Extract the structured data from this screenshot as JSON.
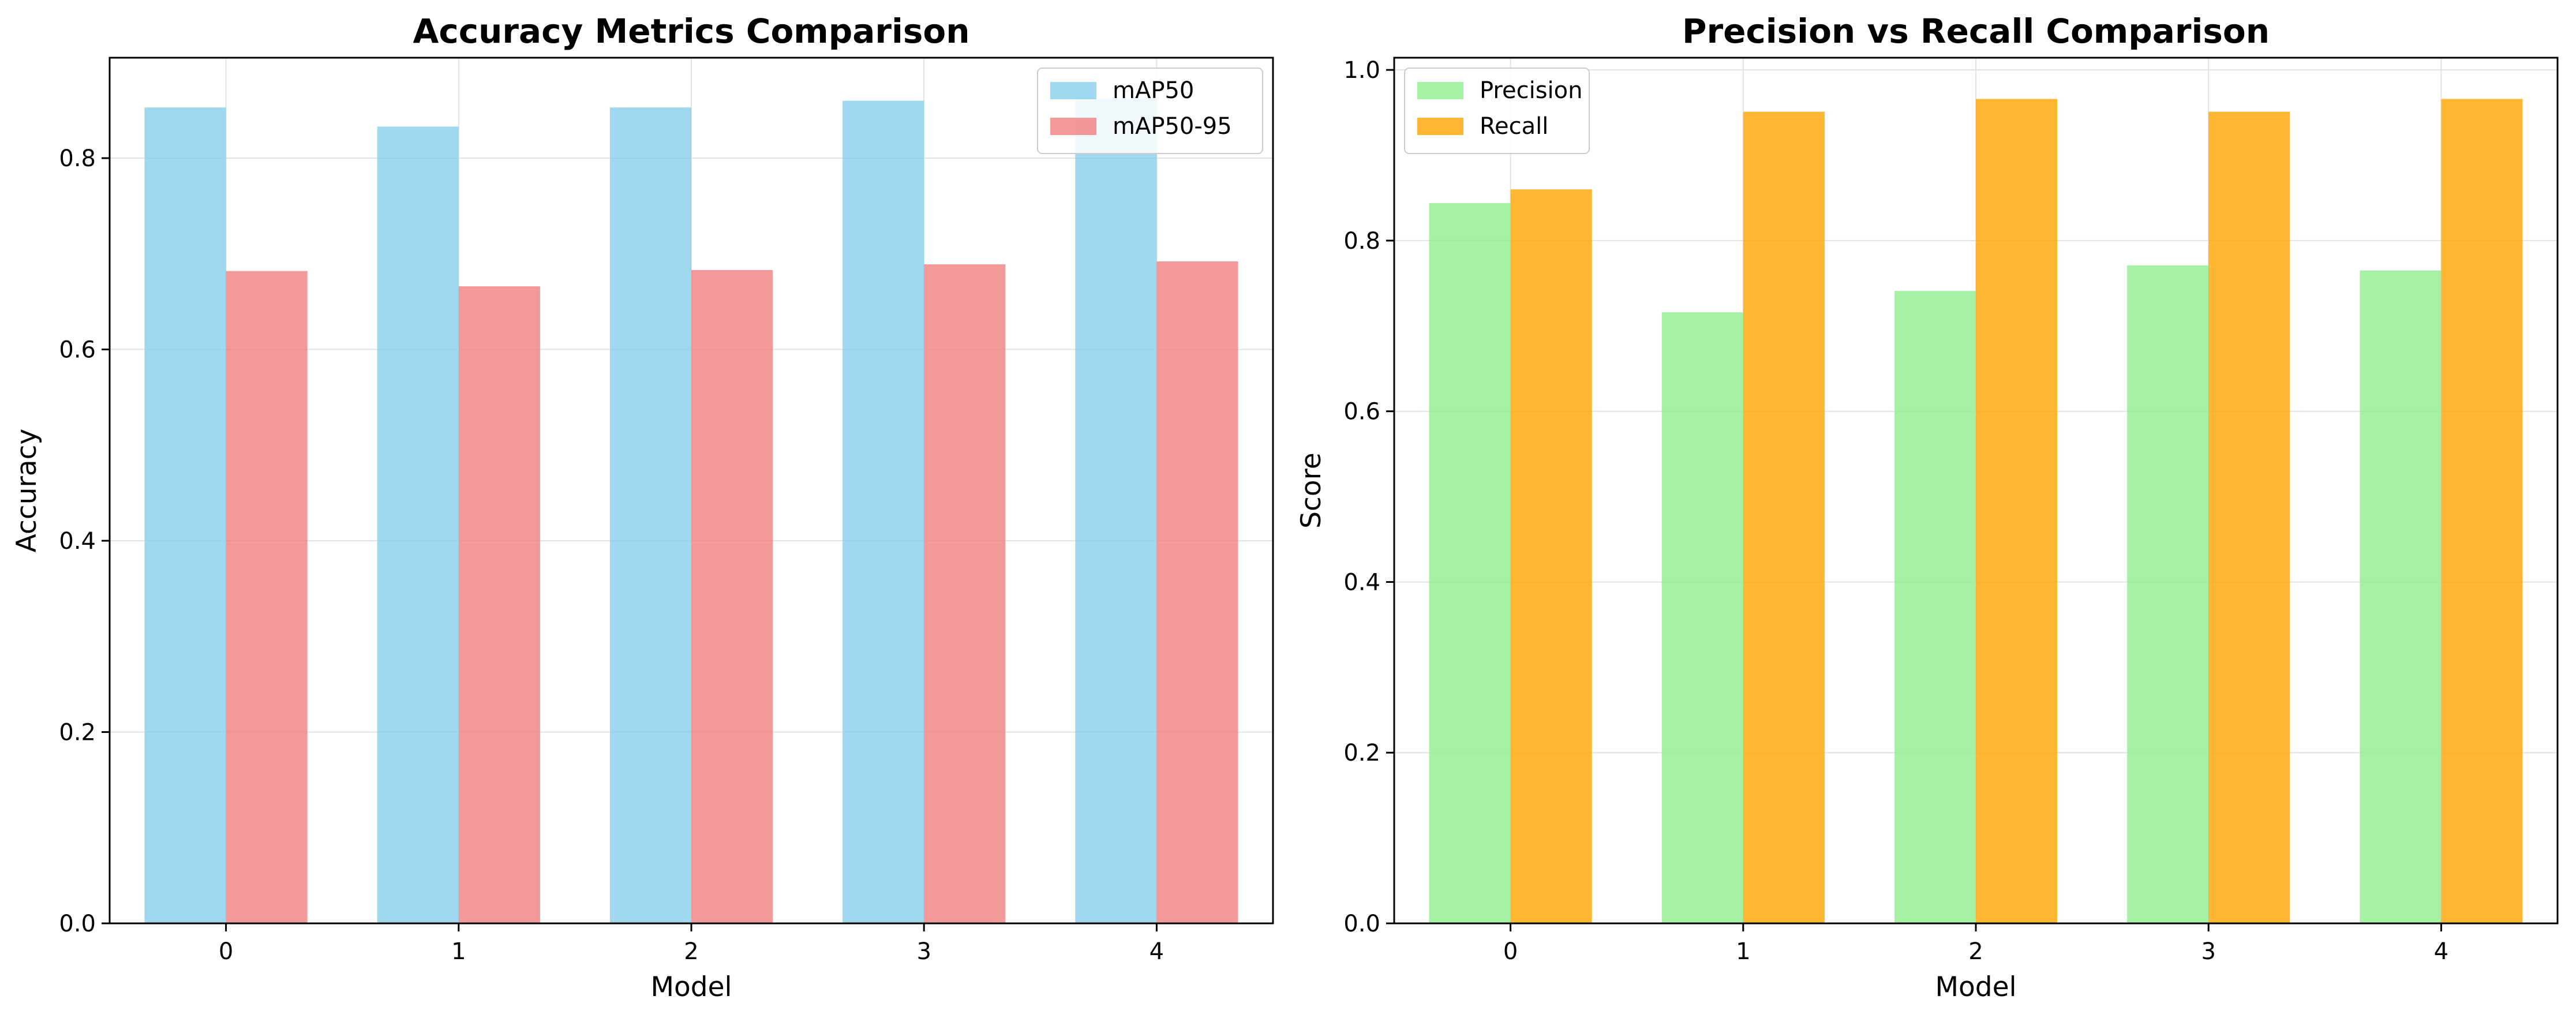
{
  "chart_data": [
    {
      "type": "bar",
      "title": "Accuracy Metrics Comparison",
      "xlabel": "Model",
      "ylabel": "Accuracy",
      "categories": [
        "0",
        "1",
        "2",
        "3",
        "4"
      ],
      "series": [
        {
          "name": "mAP50",
          "values": [
            0.853,
            0.833,
            0.853,
            0.86,
            0.862
          ],
          "color": "#87ceeb"
        },
        {
          "name": "mAP50-95",
          "values": [
            0.682,
            0.666,
            0.683,
            0.689,
            0.692
          ],
          "color": "#f08080"
        }
      ],
      "ylim": [
        0,
        0.905
      ],
      "yticks": [
        "0.0",
        "0.2",
        "0.4",
        "0.6",
        "0.8"
      ],
      "ytick_values": [
        0.0,
        0.2,
        0.4,
        0.6,
        0.8
      ],
      "grid": true,
      "legend": "top-right"
    },
    {
      "type": "bar",
      "title": "Precision vs Recall Comparison",
      "xlabel": "Model",
      "ylabel": "Score",
      "categories": [
        "0",
        "1",
        "2",
        "3",
        "4"
      ],
      "series": [
        {
          "name": "Precision",
          "values": [
            0.844,
            0.716,
            0.741,
            0.771,
            0.765
          ],
          "color": "#90ee90"
        },
        {
          "name": "Recall",
          "values": [
            0.86,
            0.951,
            0.966,
            0.951,
            0.966
          ],
          "color": "#ffa500"
        }
      ],
      "ylim": [
        0,
        1.0143
      ],
      "yticks": [
        "0.0",
        "0.2",
        "0.4",
        "0.6",
        "0.8",
        "1.0"
      ],
      "ytick_values": [
        0.0,
        0.2,
        0.4,
        0.6,
        0.8,
        1.0
      ],
      "grid": true,
      "legend": "top-left"
    }
  ]
}
